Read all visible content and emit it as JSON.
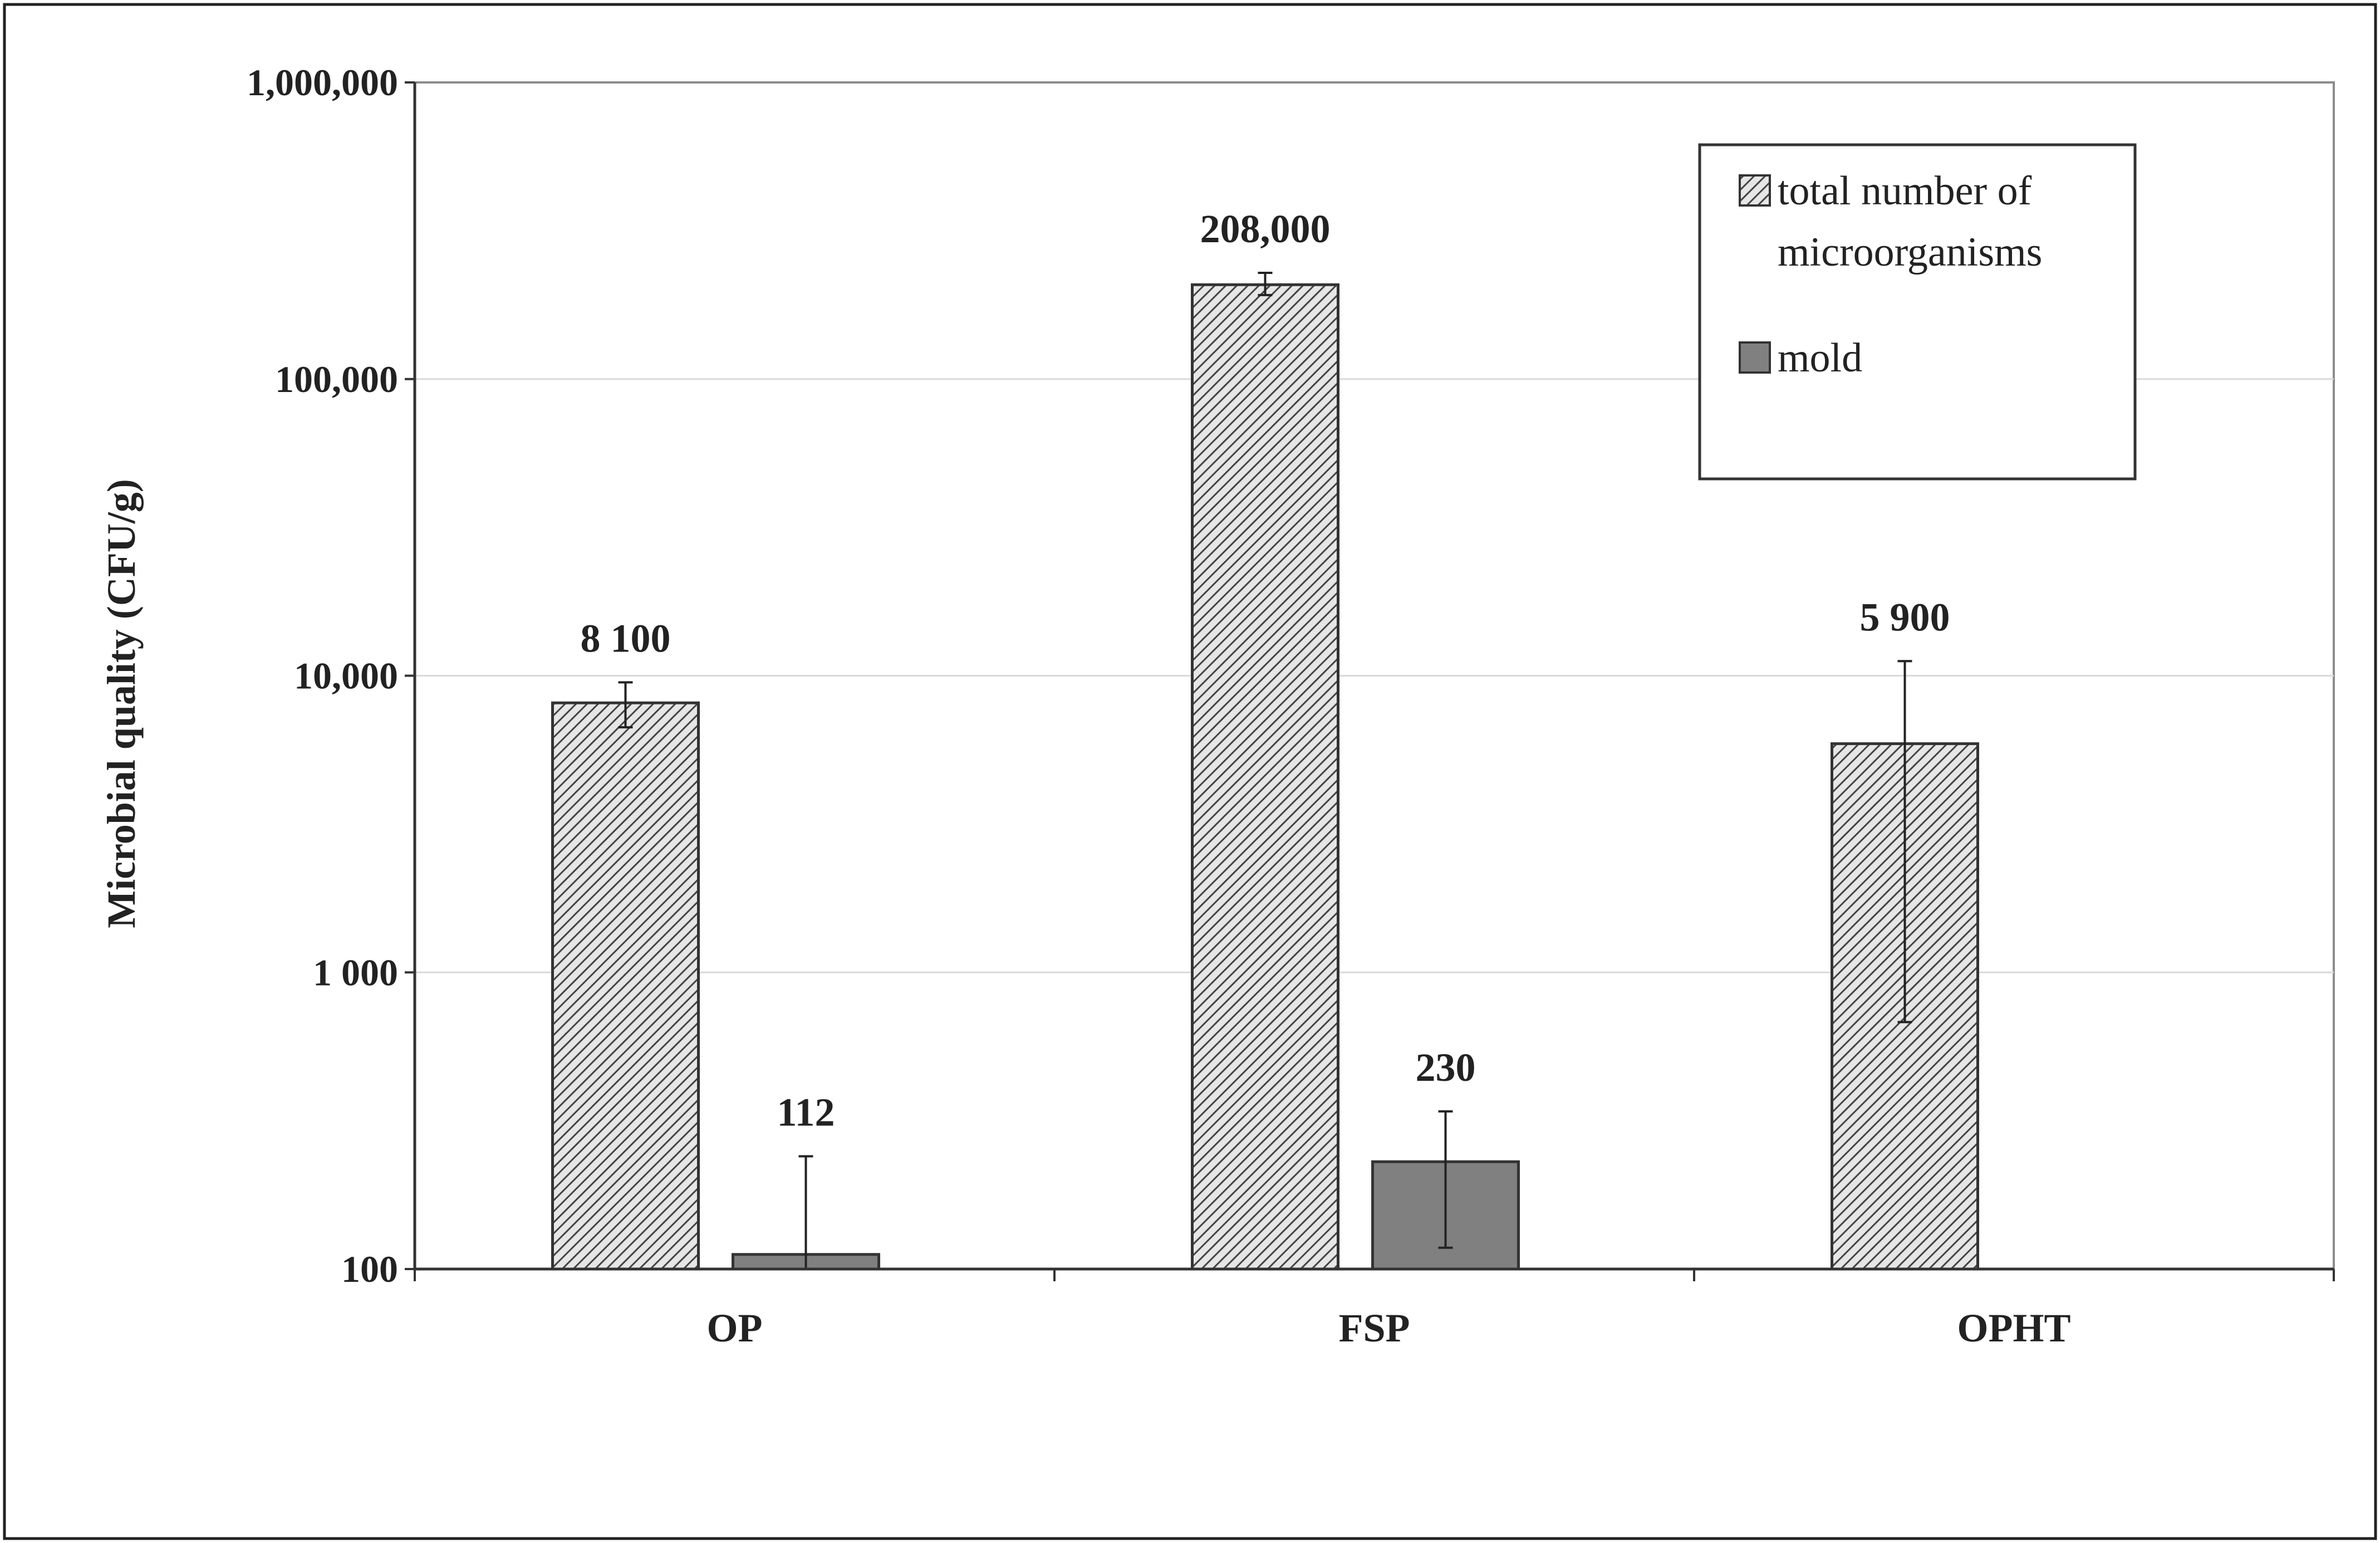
{
  "chart_data": {
    "type": "bar",
    "yscale": "log",
    "ylabel": "Microbial quality (CFU/g)",
    "ylim": [
      100,
      1000000
    ],
    "yticks": [
      {
        "value": 100,
        "label": "100"
      },
      {
        "value": 1000,
        "label": "1 000"
      },
      {
        "value": 10000,
        "label": "10,000"
      },
      {
        "value": 100000,
        "label": "100,000"
      },
      {
        "value": 1000000,
        "label": "1,000,000"
      }
    ],
    "grid": true,
    "legend_position": "top-right",
    "categories": [
      "OP",
      "FSP",
      "OPHT"
    ],
    "series": [
      {
        "name": "total number of microorganisms",
        "legend_lines": [
          "total number of",
          "microorganisms"
        ],
        "pattern": "hatched",
        "color": "#b8b8b8",
        "values": [
          8100,
          208000,
          5900
        ],
        "labels": [
          "8 100",
          "208,000",
          "5 900"
        ],
        "err_low": [
          6700,
          192000,
          680
        ],
        "err_high": [
          9500,
          228000,
          11200
        ]
      },
      {
        "name": "mold",
        "legend_lines": [
          "mold"
        ],
        "pattern": "solid",
        "color": "#808080",
        "values": [
          112,
          230,
          null
        ],
        "labels": [
          "112",
          "230",
          ""
        ],
        "err_low": [
          100,
          118,
          null
        ],
        "err_high": [
          240,
          340,
          null
        ]
      }
    ]
  }
}
